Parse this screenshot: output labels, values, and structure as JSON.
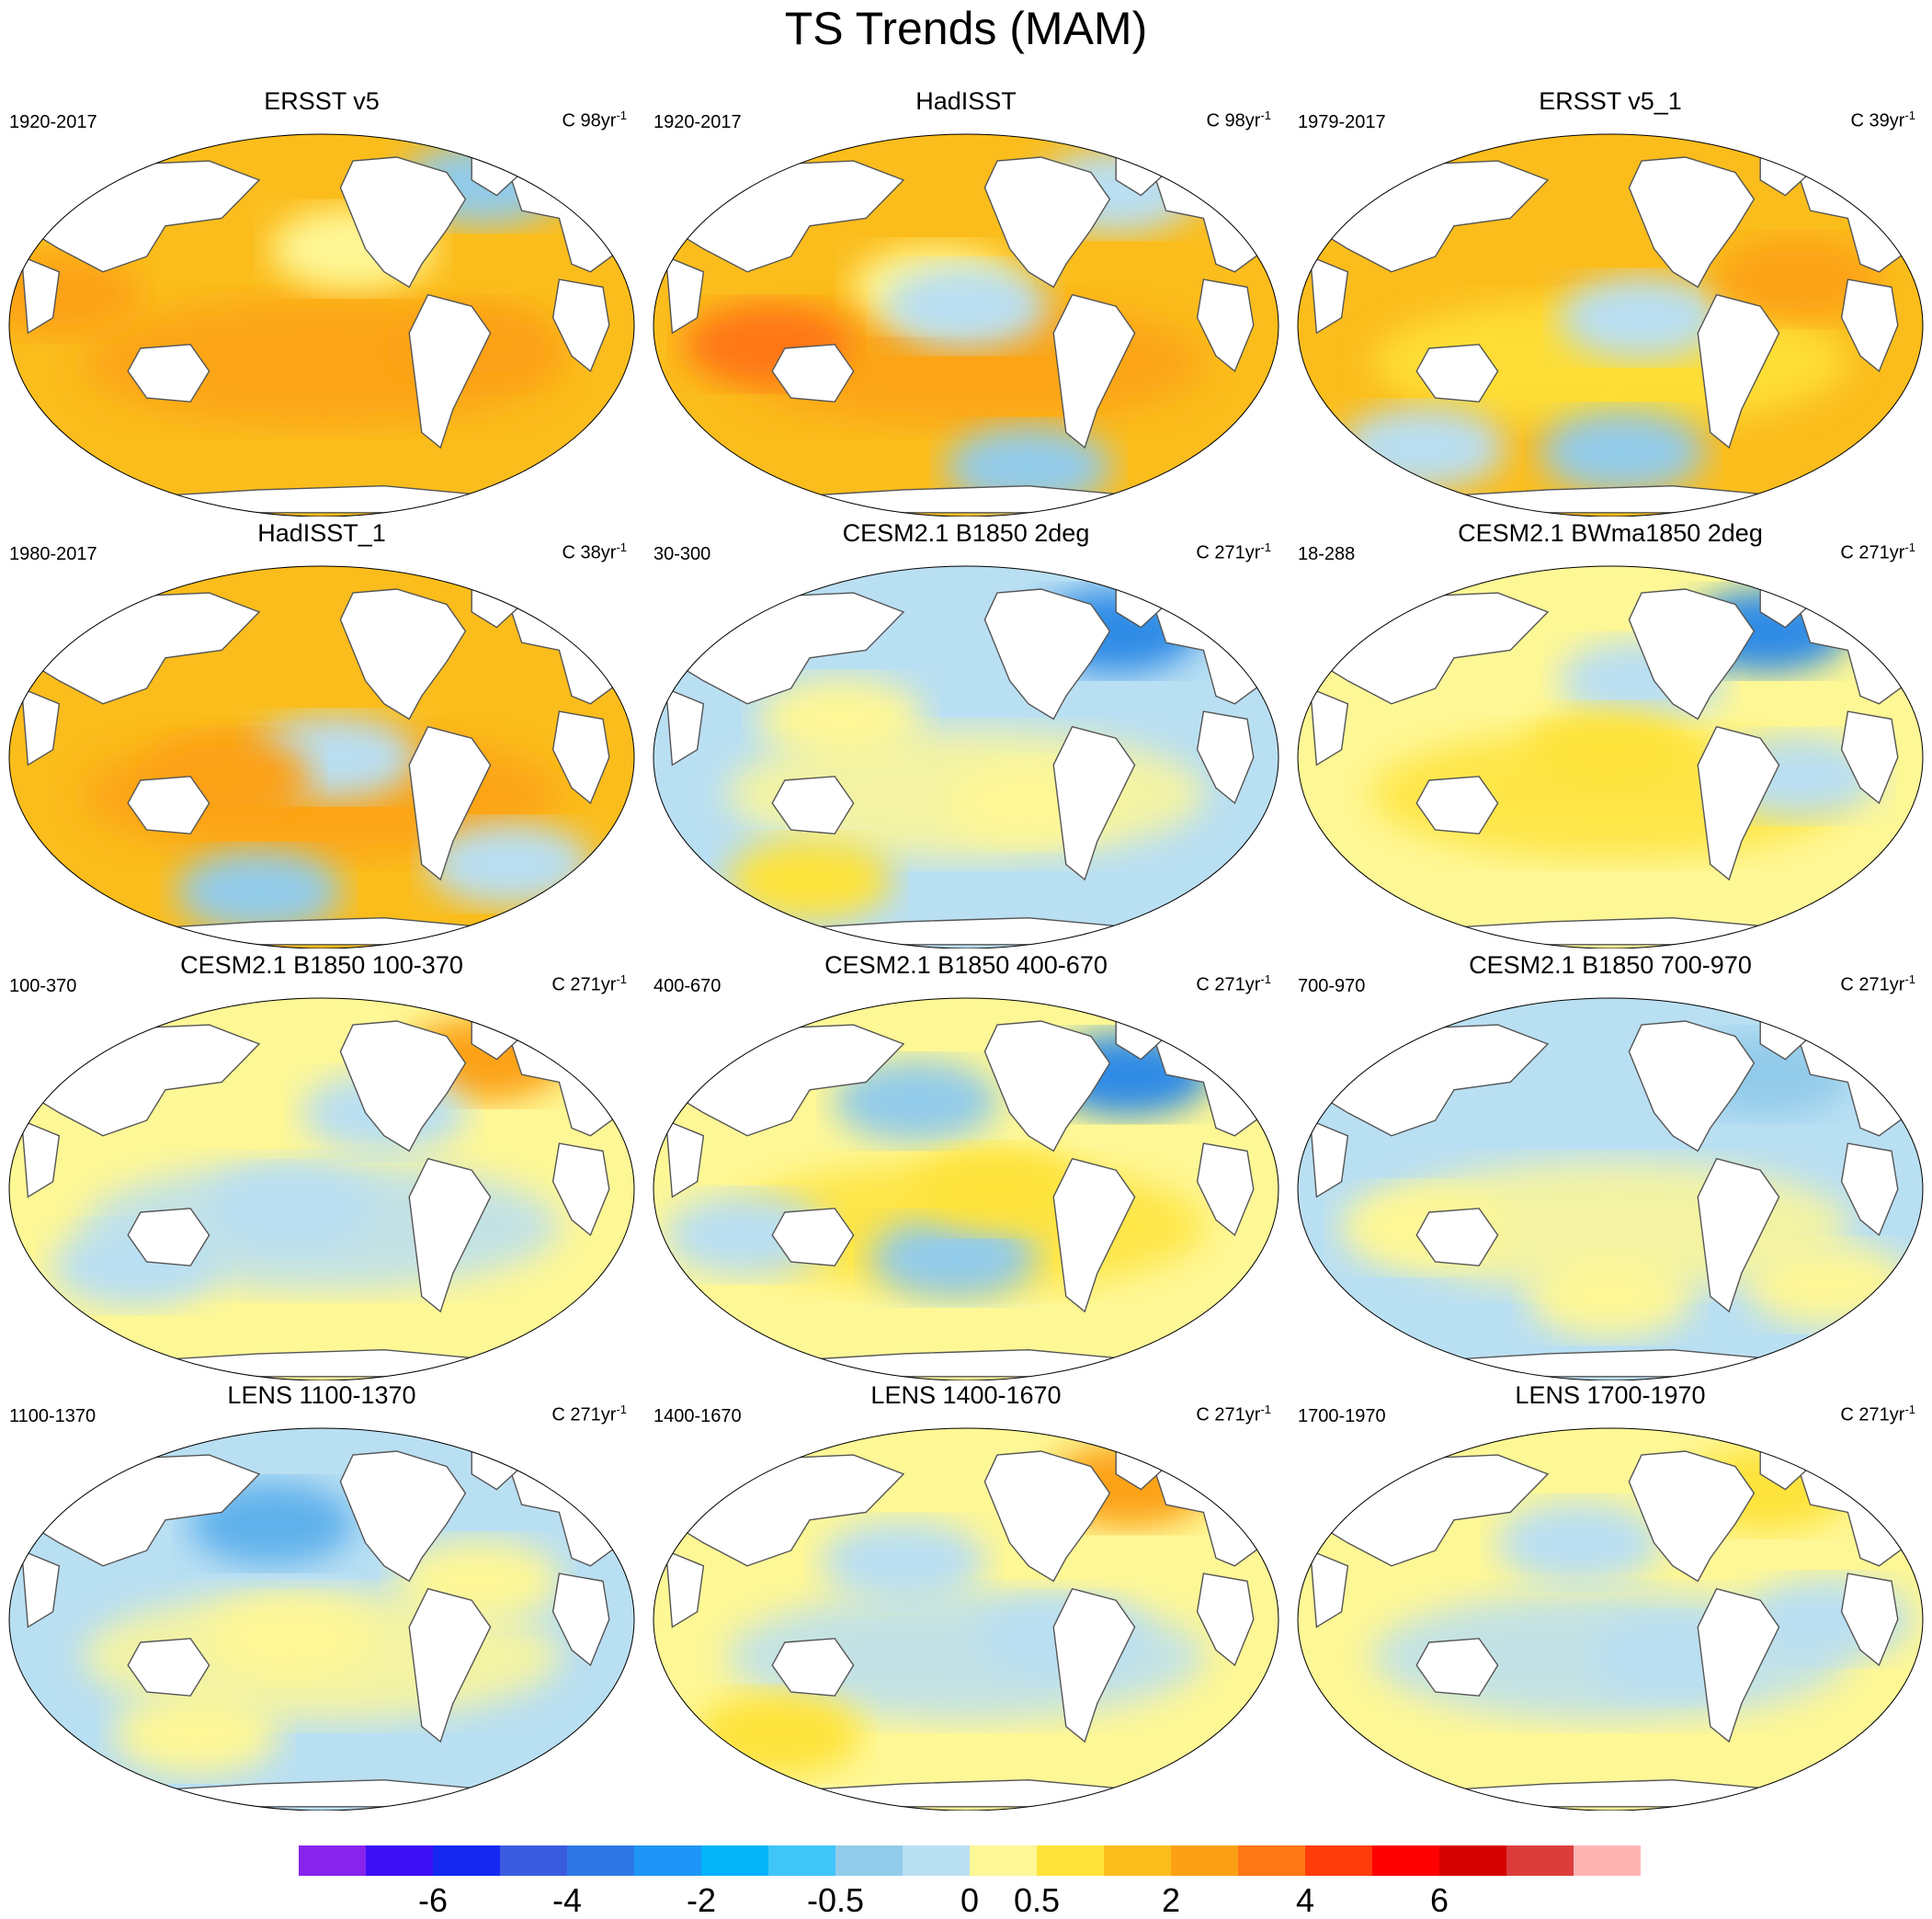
{
  "title": "TS Trends (MAM)",
  "panels": [
    {
      "title": "ERSST v5",
      "period": "1920-2017",
      "units": "C 98yr",
      "units_exp": "-1",
      "fill": "#fbbd1c",
      "fill_second": "#fca113",
      "blobs": [
        [
          "#fca113",
          0.08,
          0.42
        ],
        [
          "#fca113",
          0.75,
          0.55
        ],
        [
          "#92cbea",
          0.76,
          0.13
        ],
        [
          "#fef796",
          0.55,
          0.3
        ]
      ]
    },
    {
      "title": "HadISST",
      "period": "1920-2017",
      "units": "C 98yr",
      "units_exp": "-1",
      "fill": "#fbbd1c",
      "fill_second": "#fca113",
      "blobs": [
        [
          "#fef796",
          0.45,
          0.4
        ],
        [
          "#b9dff3",
          0.5,
          0.45
        ],
        [
          "#ff7715",
          0.18,
          0.55
        ],
        [
          "#92cbea",
          0.6,
          0.87
        ],
        [
          "#b9dff3",
          0.74,
          0.15
        ]
      ]
    },
    {
      "title": "ERSST v5_1",
      "period": "1979-2017",
      "units": "C 39yr",
      "units_exp": "-1",
      "fill": "#fbbd1c",
      "fill_second": "#fee33a",
      "blobs": [
        [
          "#b9dff3",
          0.55,
          0.48
        ],
        [
          "#92cbea",
          0.52,
          0.83
        ],
        [
          "#fca113",
          0.8,
          0.38
        ],
        [
          "#b9dff3",
          0.2,
          0.82
        ]
      ]
    },
    {
      "title": "HadISST_1",
      "period": "1980-2017",
      "units": "C 38yr",
      "units_exp": "-1",
      "fill": "#fbbd1c",
      "fill_second": "#fca113",
      "blobs": [
        [
          "#b9dff3",
          0.52,
          0.5
        ],
        [
          "#92cbea",
          0.4,
          0.85
        ],
        [
          "#fca113",
          0.35,
          0.55
        ],
        [
          "#b9dff3",
          0.8,
          0.78
        ]
      ]
    },
    {
      "title": "CESM2.1 B1850 2deg",
      "period": "30-300",
      "units": "C 271yr",
      "units_exp": "-1",
      "fill": "#b9dff3",
      "fill_second": "#fef796",
      "blobs": [
        [
          "#fef796",
          0.3,
          0.4
        ],
        [
          "#fef796",
          0.6,
          0.62
        ],
        [
          "#2d8be6",
          0.74,
          0.17
        ],
        [
          "#fee33a",
          0.25,
          0.82
        ]
      ]
    },
    {
      "title": "CESM2.1 BWma1850 2deg",
      "period": "18-288",
      "units": "C 271yr",
      "units_exp": "-1",
      "fill": "#fef796",
      "fill_second": "#fee33a",
      "blobs": [
        [
          "#b9dff3",
          0.55,
          0.3
        ],
        [
          "#b9dff3",
          0.8,
          0.55
        ],
        [
          "#2d8be6",
          0.75,
          0.17
        ],
        [
          "#fee33a",
          0.5,
          0.48
        ]
      ]
    },
    {
      "title": "CESM2.1 B1850 100-370",
      "period": "100-370",
      "units": "C 271yr",
      "units_exp": "-1",
      "fill": "#fef796",
      "fill_second": "#b9dff3",
      "blobs": [
        [
          "#b9dff3",
          0.45,
          0.55
        ],
        [
          "#b9dff3",
          0.2,
          0.7
        ],
        [
          "#fca113",
          0.76,
          0.16
        ],
        [
          "#b9dff3",
          0.6,
          0.3
        ]
      ]
    },
    {
      "title": "CESM2.1 B1850 400-670",
      "period": "400-670",
      "units": "C 271yr",
      "units_exp": "-1",
      "fill": "#fef796",
      "fill_second": "#fee33a",
      "blobs": [
        [
          "#92cbea",
          0.42,
          0.27
        ],
        [
          "#92cbea",
          0.48,
          0.68
        ],
        [
          "#b9dff3",
          0.15,
          0.62
        ],
        [
          "#2d8be6",
          0.76,
          0.2
        ],
        [
          "#fee33a",
          0.55,
          0.5
        ]
      ]
    },
    {
      "title": "CESM2.1 B1850 700-970",
      "period": "700-970",
      "units": "C 271yr",
      "units_exp": "-1",
      "fill": "#b9dff3",
      "fill_second": "#fef796",
      "blobs": [
        [
          "#fef796",
          0.2,
          0.6
        ],
        [
          "#fef796",
          0.5,
          0.78
        ],
        [
          "#92cbea",
          0.75,
          0.2
        ],
        [
          "#fef796",
          0.85,
          0.75
        ]
      ]
    },
    {
      "title": "LENS 1100-1370",
      "period": "1100-1370",
      "units": "C 271yr",
      "units_exp": "-1",
      "fill": "#b9dff3",
      "fill_second": "#fef796",
      "blobs": [
        [
          "#5fb1ec",
          0.42,
          0.25
        ],
        [
          "#fef796",
          0.45,
          0.55
        ],
        [
          "#fef796",
          0.3,
          0.8
        ],
        [
          "#fef796",
          0.75,
          0.4
        ]
      ]
    },
    {
      "title": "LENS 1400-1670",
      "period": "1400-1670",
      "units": "C 271yr",
      "units_exp": "-1",
      "fill": "#fef796",
      "fill_second": "#b9dff3",
      "blobs": [
        [
          "#b9dff3",
          0.4,
          0.35
        ],
        [
          "#b9dff3",
          0.65,
          0.55
        ],
        [
          "#fee33a",
          0.2,
          0.8
        ],
        [
          "#fca113",
          0.76,
          0.15
        ]
      ]
    },
    {
      "title": "LENS 1700-1970",
      "period": "1700-1970",
      "units": "C 271yr",
      "units_exp": "-1",
      "fill": "#fef796",
      "fill_second": "#b9dff3",
      "blobs": [
        [
          "#b9dff3",
          0.45,
          0.3
        ],
        [
          "#b9dff3",
          0.6,
          0.6
        ],
        [
          "#b9dff3",
          0.85,
          0.5
        ],
        [
          "#fee33a",
          0.75,
          0.16
        ]
      ]
    }
  ],
  "colorbar": {
    "colors": [
      "#8724ec",
      "#3c0ff6",
      "#1428f0",
      "#3c5ce0",
      "#2d78e6",
      "#1e96f7",
      "#05b3f9",
      "#40c5f9",
      "#92cbea",
      "#b9dff3",
      "#fef796",
      "#fee33a",
      "#fbbd1c",
      "#fca113",
      "#ff7715",
      "#ff3c0a",
      "#ff0000",
      "#d50000",
      "#dc3c3c",
      "#ffb4b4"
    ],
    "tick_labels": [
      "-6",
      "-4",
      "-2",
      "-0.5",
      "0",
      "0.5",
      "2",
      "4",
      "6"
    ],
    "tick_boundaries": [
      2,
      4,
      6,
      8,
      10,
      11,
      13,
      15,
      17
    ]
  }
}
